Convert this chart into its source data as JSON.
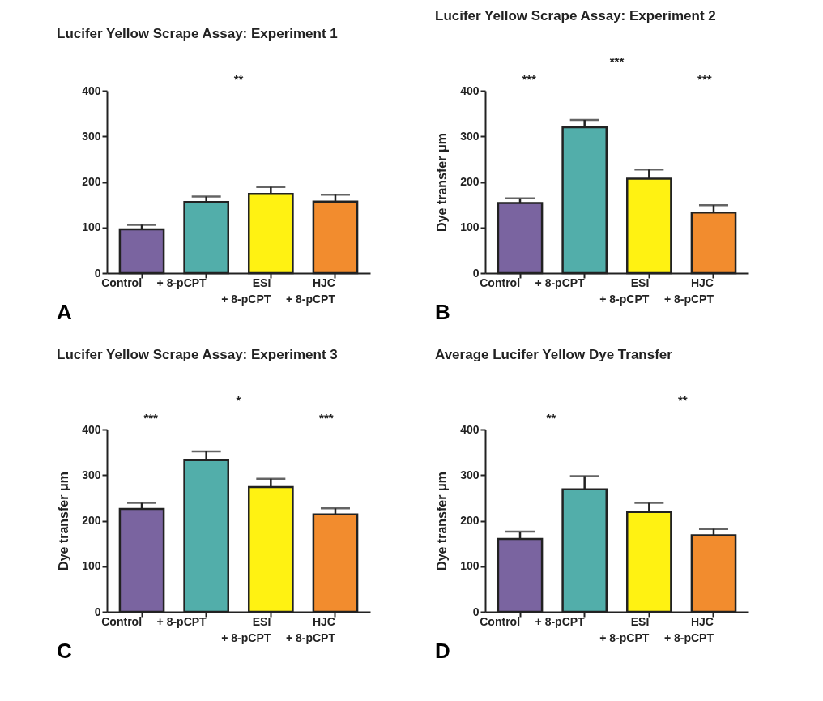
{
  "chart_data": [
    {
      "type": "bar",
      "title": "Lucifer Yellow Scrape Assay: Experiment 1",
      "categories": [
        "Control",
        "+ 8-pCPT",
        "ESI\n+ 8-pCPT",
        "HJC\n+ 8-pCPT"
      ],
      "values": [
        96,
        156,
        174,
        157
      ],
      "errors": [
        10,
        12,
        15,
        15
      ],
      "colors": [
        "#7a64a0",
        "#52aeaa",
        "#fff212",
        "#f28c2e"
      ],
      "ylim": [
        0,
        400
      ],
      "yticks": [
        0,
        100,
        200,
        300,
        400
      ],
      "annotations": [
        "**",
        "A"
      ]
    },
    {
      "type": "bar",
      "title": "Lucifer Yellow Scrape Assay: Experiment 2",
      "ylabel": "Dye transfer μm",
      "categories": [
        "Control",
        "+ 8-pCPT",
        "ESI\n+ 8-pCPT",
        "HJC\n+ 8-pCPT"
      ],
      "values": [
        154,
        320,
        207,
        133
      ],
      "errors": [
        10,
        16,
        20,
        16
      ],
      "colors": [
        "#7a64a0",
        "#52aeaa",
        "#fff212",
        "#f28c2e"
      ],
      "ylim": [
        0,
        400
      ],
      "yticks": [
        0,
        100,
        200,
        300,
        400
      ],
      "annotations": [
        "***",
        "***",
        "***",
        "B"
      ]
    },
    {
      "type": "bar",
      "title": "Lucifer Yellow Scrape Assay: Experiment 3",
      "ylabel": "Dye transfer μm",
      "categories": [
        "Control",
        "+ 8-pCPT",
        "ESI\n+ 8-pCPT",
        "HJC\n+ 8-pCPT"
      ],
      "values": [
        226,
        333,
        274,
        214
      ],
      "errors": [
        13,
        19,
        18,
        13
      ],
      "colors": [
        "#7a64a0",
        "#52aeaa",
        "#fff212",
        "#f28c2e"
      ],
      "ylim": [
        0,
        400
      ],
      "yticks": [
        0,
        100,
        200,
        300,
        400
      ],
      "annotations": [
        "***",
        "*",
        "***",
        "C"
      ]
    },
    {
      "type": "bar",
      "title": "Average Lucifer Yellow Dye Transfer",
      "ylabel": "Dye transfer μm",
      "categories": [
        "Control",
        "+ 8-pCPT",
        "ESI\n+ 8-pCPT",
        "HJC\n+ 8-pCPT"
      ],
      "values": [
        160,
        269,
        219,
        168
      ],
      "errors": [
        16,
        29,
        20,
        14
      ],
      "colors": [
        "#7a64a0",
        "#52aeaa",
        "#fff212",
        "#f28c2e"
      ],
      "ylim": [
        0,
        400
      ],
      "yticks": [
        0,
        100,
        200,
        300,
        400
      ],
      "annotations": [
        "**",
        "**",
        "D"
      ]
    }
  ]
}
